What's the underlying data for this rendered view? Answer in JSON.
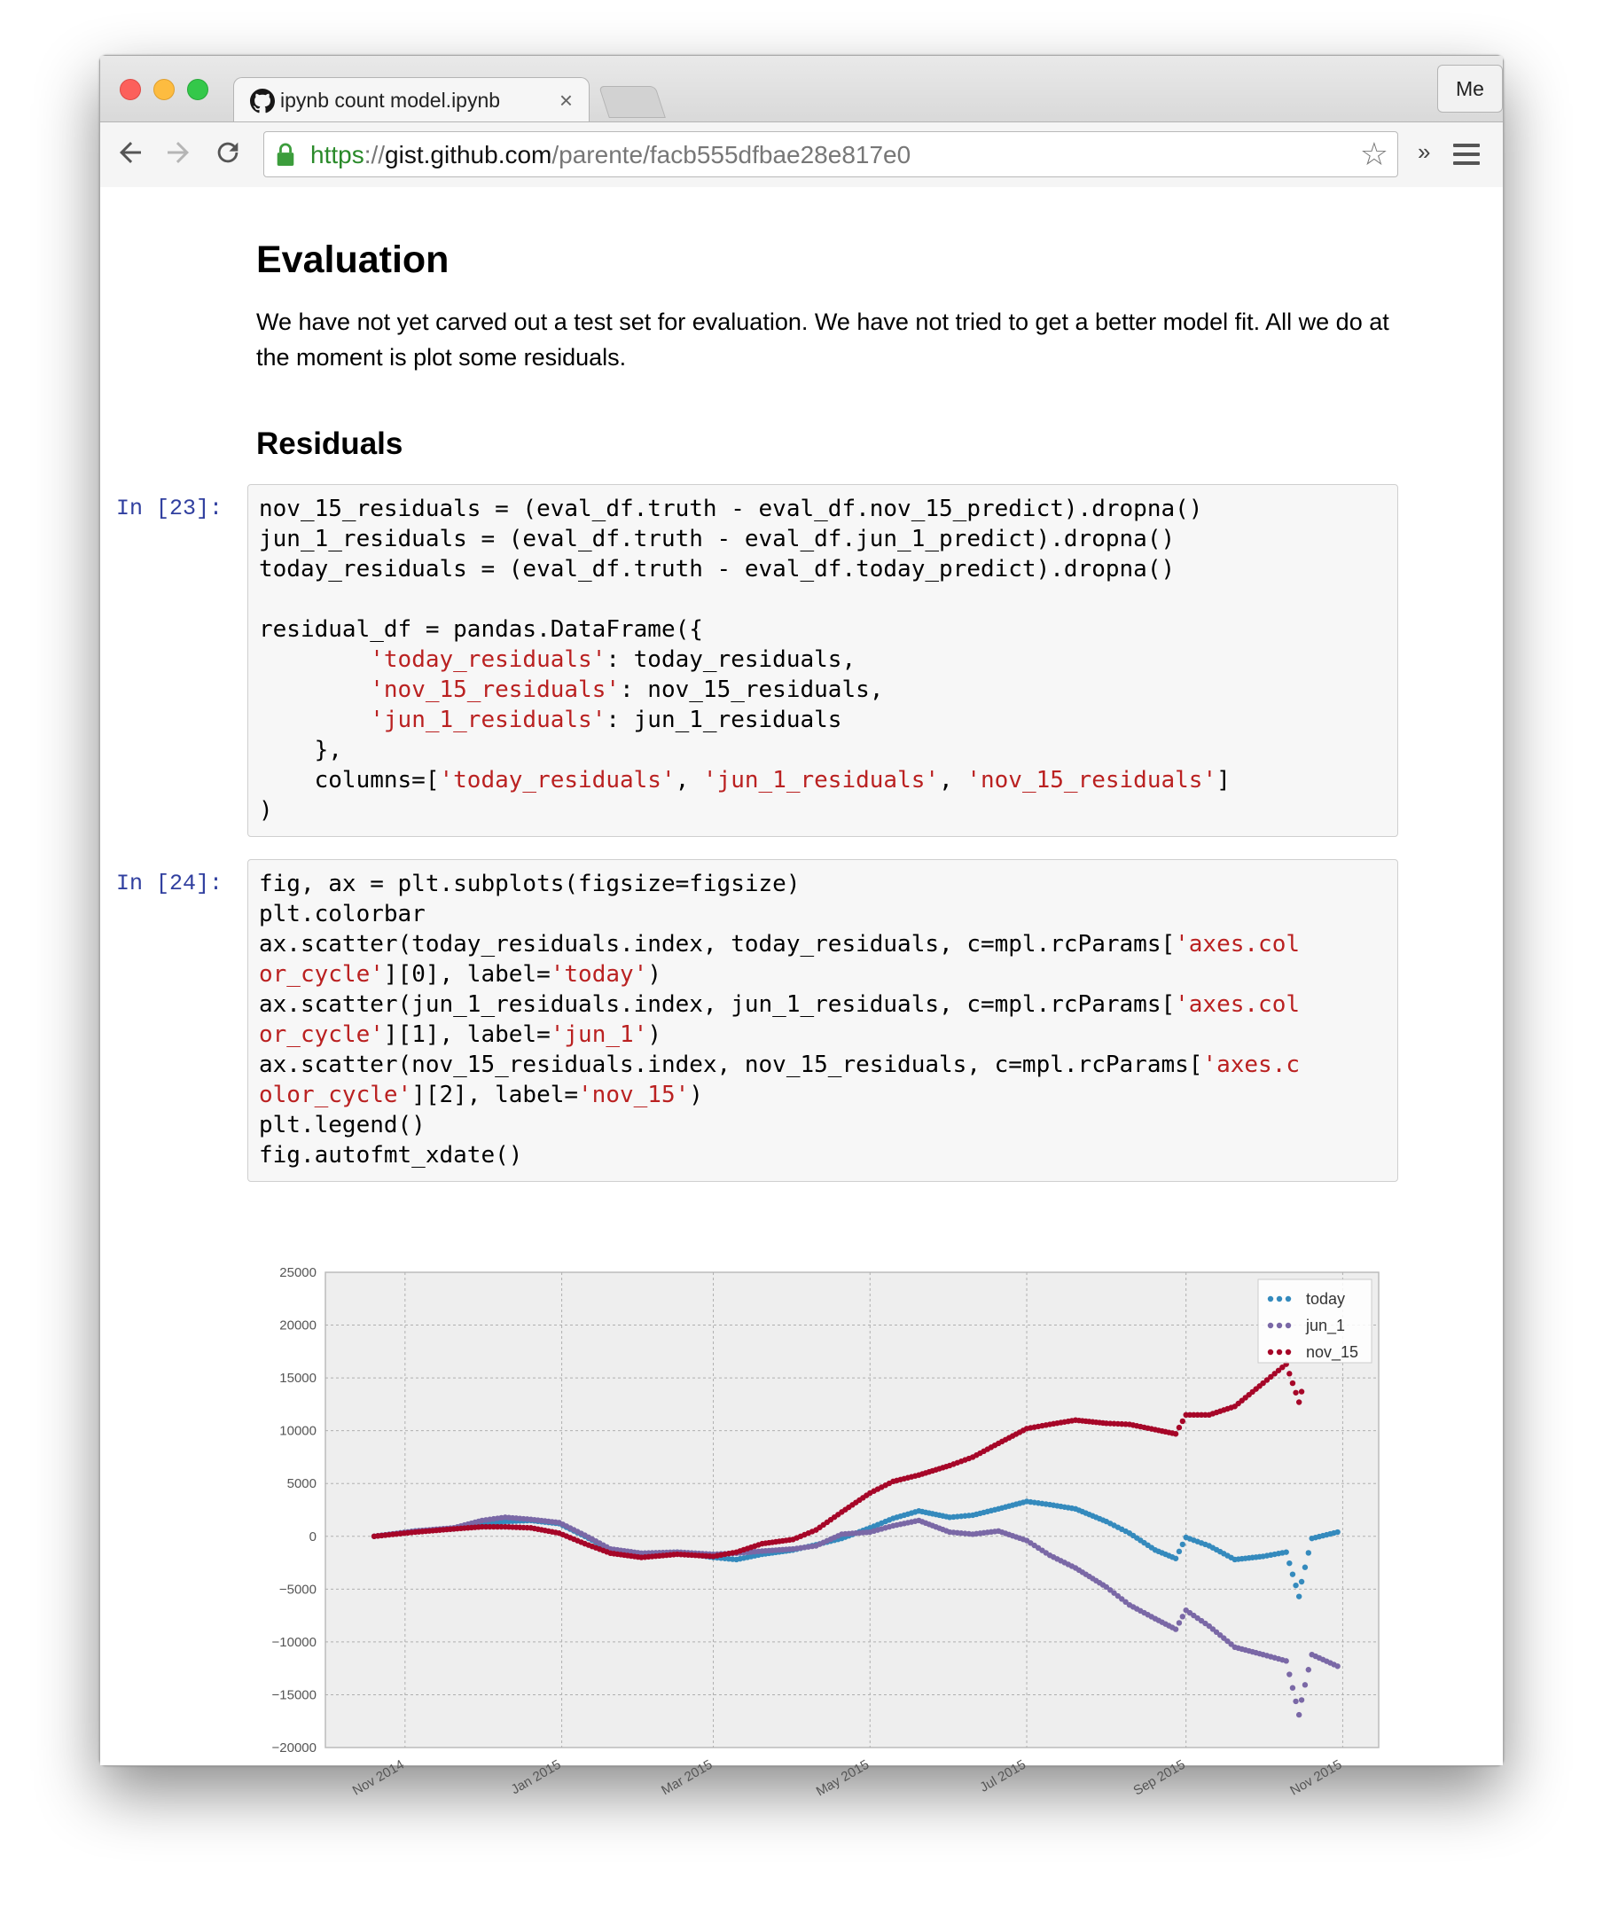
{
  "browser": {
    "tab_title": "ipynb count model.ipynb",
    "tab_close": "×",
    "profile_label": "Me",
    "url_scheme": "https",
    "url_sep": "://",
    "url_host": "gist.github.com",
    "url_path": "/parente/facb555dfbae28e817e0",
    "overflow_label": "»",
    "icons": [
      "back-icon",
      "forward-icon",
      "reload-icon",
      "lock-icon",
      "star-icon",
      "menu-icon",
      "github-icon",
      "close-icon"
    ]
  },
  "notebook": {
    "heading": "Evaluation",
    "paragraph": "We have not yet carved out a test set for evaluation. We have not tried to get a better model fit. All we do at the moment is plot some residuals.",
    "subheading": "Residuals",
    "cell1": {
      "prompt": "In [23]:",
      "code": [
        [
          [
            "nov_15_residuals = (eval_df.truth - eval_df.nov_15_predict).dropna()",
            "c"
          ]
        ],
        [
          [
            "jun_1_residuals = (eval_df.truth - eval_df.jun_1_predict).dropna()",
            "c"
          ]
        ],
        [
          [
            "today_residuals = (eval_df.truth - eval_df.today_predict).dropna()",
            "c"
          ]
        ],
        [
          [
            "",
            "c"
          ]
        ],
        [
          [
            "residual_df = pandas.DataFrame({",
            "c"
          ]
        ],
        [
          [
            "        ",
            "c"
          ],
          [
            "'today_residuals'",
            "s"
          ],
          [
            ": today_residuals,",
            "c"
          ]
        ],
        [
          [
            "        ",
            "c"
          ],
          [
            "'nov_15_residuals'",
            "s"
          ],
          [
            ": nov_15_residuals,",
            "c"
          ]
        ],
        [
          [
            "        ",
            "c"
          ],
          [
            "'jun_1_residuals'",
            "s"
          ],
          [
            ": jun_1_residuals",
            "c"
          ]
        ],
        [
          [
            "    },",
            "c"
          ]
        ],
        [
          [
            "    columns=[",
            "c"
          ],
          [
            "'today_residuals'",
            "s"
          ],
          [
            ", ",
            "c"
          ],
          [
            "'jun_1_residuals'",
            "s"
          ],
          [
            ", ",
            "c"
          ],
          [
            "'nov_15_residuals'",
            "s"
          ],
          [
            "]",
            "c"
          ]
        ],
        [
          [
            ")",
            "c"
          ]
        ]
      ]
    },
    "cell2": {
      "prompt": "In [24]:",
      "code": [
        [
          [
            "fig, ax = plt.subplots(figsize=figsize)",
            "c"
          ]
        ],
        [
          [
            "plt.colorbar",
            "c"
          ]
        ],
        [
          [
            "ax.scatter(today_residuals.index, today_residuals, c=mpl.rcParams[",
            "c"
          ],
          [
            "'axes.col",
            "s"
          ]
        ],
        [
          [
            "or_cycle'",
            "s"
          ],
          [
            "][0], label=",
            "c"
          ],
          [
            "'today'",
            "s"
          ],
          [
            ")",
            "c"
          ]
        ],
        [
          [
            "ax.scatter(jun_1_residuals.index, jun_1_residuals, c=mpl.rcParams[",
            "c"
          ],
          [
            "'axes.col",
            "s"
          ]
        ],
        [
          [
            "or_cycle'",
            "s"
          ],
          [
            "][1], label=",
            "c"
          ],
          [
            "'jun_1'",
            "s"
          ],
          [
            ")",
            "c"
          ]
        ],
        [
          [
            "ax.scatter(nov_15_residuals.index, nov_15_residuals, c=mpl.rcParams[",
            "c"
          ],
          [
            "'axes.c",
            "s"
          ]
        ],
        [
          [
            "olor_cycle'",
            "s"
          ],
          [
            "][2], label=",
            "c"
          ],
          [
            "'nov_15'",
            "s"
          ],
          [
            ")",
            "c"
          ]
        ],
        [
          [
            "plt.legend()",
            "c"
          ]
        ],
        [
          [
            "fig.autofmt_xdate()",
            "c"
          ]
        ]
      ]
    }
  },
  "chart_data": {
    "type": "scatter",
    "title": "",
    "xlabel": "",
    "ylabel": "",
    "ylim": [
      -20000,
      25000
    ],
    "xlim": [
      "2014-10-01",
      "2015-11-15"
    ],
    "yticks": [
      -20000,
      -15000,
      -10000,
      -5000,
      0,
      5000,
      10000,
      15000,
      20000,
      25000
    ],
    "ytick_labels": [
      "−20000",
      "−15000",
      "−10000",
      "−5000",
      "0",
      "5000",
      "10000",
      "15000",
      "20000",
      "25000"
    ],
    "xticks": [
      "2014-11-01",
      "2015-01-01",
      "2015-03-01",
      "2015-05-01",
      "2015-07-01",
      "2015-09-01",
      "2015-11-01"
    ],
    "xtick_labels": [
      "Nov 2014",
      "Jan 2015",
      "Mar 2015",
      "May 2015",
      "Jul 2015",
      "Sep 2015",
      "Nov 2015"
    ],
    "grid": true,
    "legend_position": "top-right",
    "series": [
      {
        "name": "today",
        "color": "#348abd",
        "points": [
          [
            "2014-10-20",
            0
          ],
          [
            "2014-11-05",
            500
          ],
          [
            "2014-11-20",
            700
          ],
          [
            "2014-12-01",
            1100
          ],
          [
            "2014-12-10",
            1400
          ],
          [
            "2014-12-20",
            1500
          ],
          [
            "2014-12-31",
            1200
          ],
          [
            "2015-01-10",
            0
          ],
          [
            "2015-01-20",
            -1300
          ],
          [
            "2015-02-01",
            -1700
          ],
          [
            "2015-02-15",
            -1500
          ],
          [
            "2015-03-01",
            -2000
          ],
          [
            "2015-03-10",
            -2200
          ],
          [
            "2015-03-20",
            -1700
          ],
          [
            "2015-04-01",
            -1300
          ],
          [
            "2015-04-10",
            -800
          ],
          [
            "2015-04-20",
            -200
          ],
          [
            "2015-05-01",
            800
          ],
          [
            "2015-05-10",
            1700
          ],
          [
            "2015-05-20",
            2400
          ],
          [
            "2015-06-01",
            1800
          ],
          [
            "2015-06-10",
            2000
          ],
          [
            "2015-06-20",
            2600
          ],
          [
            "2015-07-01",
            3300
          ],
          [
            "2015-07-10",
            3000
          ],
          [
            "2015-07-20",
            2600
          ],
          [
            "2015-08-01",
            1400
          ],
          [
            "2015-08-10",
            300
          ],
          [
            "2015-08-20",
            -1300
          ],
          [
            "2015-08-28",
            -2100
          ],
          [
            "2015-09-01",
            -100
          ],
          [
            "2015-09-10",
            -900
          ],
          [
            "2015-09-20",
            -2200
          ],
          [
            "2015-10-01",
            -1900
          ],
          [
            "2015-10-10",
            -1500
          ],
          [
            "2015-10-15",
            -5700
          ],
          [
            "2015-10-16",
            -4300
          ],
          [
            "2015-10-20",
            -200
          ],
          [
            "2015-10-30",
            400
          ]
        ]
      },
      {
        "name": "jun_1",
        "color": "#7a68a6",
        "points": [
          [
            "2014-10-20",
            0
          ],
          [
            "2014-11-05",
            500
          ],
          [
            "2014-11-20",
            800
          ],
          [
            "2014-12-01",
            1500
          ],
          [
            "2014-12-10",
            1800
          ],
          [
            "2014-12-20",
            1600
          ],
          [
            "2014-12-31",
            1300
          ],
          [
            "2015-01-10",
            100
          ],
          [
            "2015-01-20",
            -1200
          ],
          [
            "2015-02-01",
            -1600
          ],
          [
            "2015-02-15",
            -1500
          ],
          [
            "2015-03-01",
            -1700
          ],
          [
            "2015-03-10",
            -1600
          ],
          [
            "2015-03-20",
            -1400
          ],
          [
            "2015-04-01",
            -1200
          ],
          [
            "2015-04-10",
            -900
          ],
          [
            "2015-04-20",
            200
          ],
          [
            "2015-05-01",
            400
          ],
          [
            "2015-05-10",
            1000
          ],
          [
            "2015-05-20",
            1500
          ],
          [
            "2015-06-01",
            400
          ],
          [
            "2015-06-10",
            200
          ],
          [
            "2015-06-20",
            500
          ],
          [
            "2015-07-01",
            -400
          ],
          [
            "2015-07-10",
            -1800
          ],
          [
            "2015-07-20",
            -3000
          ],
          [
            "2015-08-01",
            -4800
          ],
          [
            "2015-08-10",
            -6500
          ],
          [
            "2015-08-20",
            -7800
          ],
          [
            "2015-08-28",
            -8800
          ],
          [
            "2015-09-01",
            -7000
          ],
          [
            "2015-09-10",
            -8500
          ],
          [
            "2015-09-20",
            -10500
          ],
          [
            "2015-10-01",
            -11200
          ],
          [
            "2015-10-10",
            -11800
          ],
          [
            "2015-10-15",
            -16900
          ],
          [
            "2015-10-16",
            -15500
          ],
          [
            "2015-10-20",
            -11200
          ],
          [
            "2015-10-30",
            -12300
          ]
        ]
      },
      {
        "name": "nov_15",
        "color": "#a60628",
        "points": [
          [
            "2014-10-20",
            0
          ],
          [
            "2014-11-05",
            400
          ],
          [
            "2014-11-20",
            700
          ],
          [
            "2014-12-01",
            900
          ],
          [
            "2014-12-10",
            900
          ],
          [
            "2014-12-20",
            800
          ],
          [
            "2014-12-31",
            300
          ],
          [
            "2015-01-10",
            -700
          ],
          [
            "2015-01-20",
            -1600
          ],
          [
            "2015-02-01",
            -2000
          ],
          [
            "2015-02-15",
            -1700
          ],
          [
            "2015-03-01",
            -1900
          ],
          [
            "2015-03-10",
            -1500
          ],
          [
            "2015-03-20",
            -700
          ],
          [
            "2015-04-01",
            -300
          ],
          [
            "2015-04-10",
            600
          ],
          [
            "2015-04-20",
            2300
          ],
          [
            "2015-05-01",
            4100
          ],
          [
            "2015-05-10",
            5200
          ],
          [
            "2015-05-20",
            5800
          ],
          [
            "2015-06-01",
            6700
          ],
          [
            "2015-06-10",
            7500
          ],
          [
            "2015-06-20",
            8800
          ],
          [
            "2015-07-01",
            10200
          ],
          [
            "2015-07-10",
            10600
          ],
          [
            "2015-07-20",
            11000
          ],
          [
            "2015-08-01",
            10700
          ],
          [
            "2015-08-10",
            10600
          ],
          [
            "2015-08-20",
            10100
          ],
          [
            "2015-08-28",
            9700
          ],
          [
            "2015-09-01",
            11500
          ],
          [
            "2015-09-10",
            11500
          ],
          [
            "2015-09-20",
            12300
          ],
          [
            "2015-10-01",
            14500
          ],
          [
            "2015-10-10",
            16300
          ],
          [
            "2015-10-15",
            12700
          ],
          [
            "2015-10-16",
            13700
          ]
        ]
      }
    ]
  }
}
